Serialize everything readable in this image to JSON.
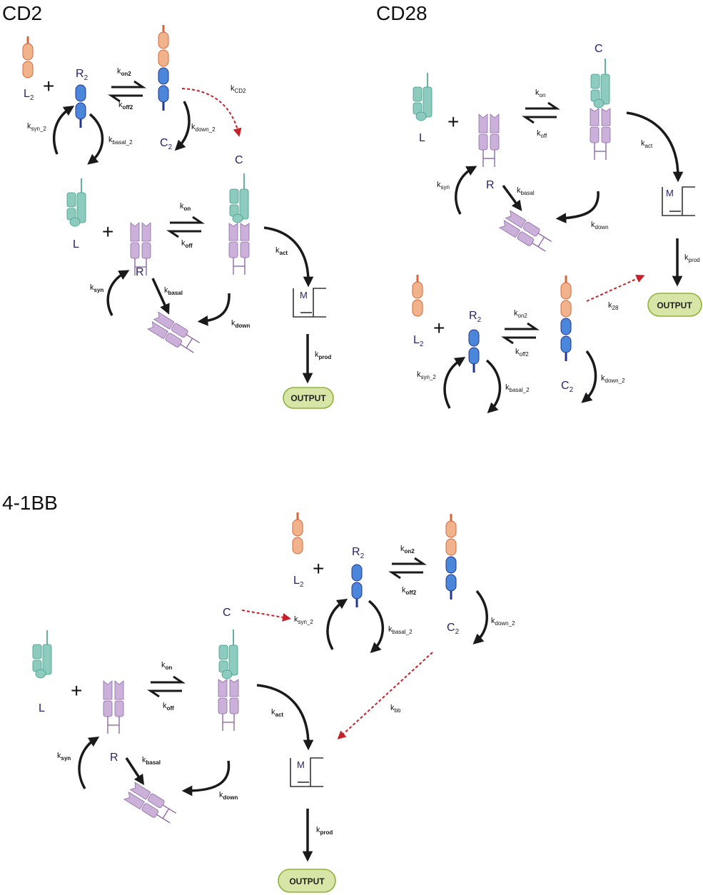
{
  "panels": [
    {
      "title": "CD2",
      "species": {
        "l2": "L",
        "r2": "R",
        "c2": "C",
        "c": "C",
        "l": "L",
        "r": "R",
        "m": "M"
      },
      "rates": {
        "kon2": [
          "k",
          "on2"
        ],
        "koff2": [
          "k",
          "off2"
        ],
        "kcd2": [
          "k",
          "CD2"
        ],
        "ksyn2": [
          "k",
          "syn_2"
        ],
        "kbasal2": [
          "k",
          "basal_2"
        ],
        "kdown2": [
          "k",
          "down_2"
        ],
        "kon": [
          "k",
          "on"
        ],
        "koff": [
          "k",
          "off"
        ],
        "kact": [
          "k",
          "act"
        ],
        "ksyn": [
          "k",
          "syn"
        ],
        "kbasal": [
          "k",
          "basal"
        ],
        "kdown": [
          "k",
          "down"
        ],
        "kprod": [
          "k",
          "prod"
        ]
      },
      "output": "OUTPUT"
    },
    {
      "title": "CD28",
      "species": {
        "c": "C",
        "l": "L",
        "r": "R",
        "m": "M",
        "l2": "L",
        "r2": "R",
        "c2": "C"
      },
      "rates": {
        "kon": [
          "k",
          "on"
        ],
        "koff": [
          "k",
          "off"
        ],
        "kact": [
          "k",
          "act"
        ],
        "ksyn": [
          "k",
          "syn"
        ],
        "kbasal": [
          "k",
          "basal"
        ],
        "kdown": [
          "k",
          "down"
        ],
        "kprod": [
          "k",
          "prod"
        ],
        "kon2": [
          "k",
          "on2"
        ],
        "koff2": [
          "k",
          "off2"
        ],
        "k28": [
          "k",
          "28"
        ],
        "ksyn2": [
          "k",
          "syn_2"
        ],
        "kbasal2": [
          "k",
          "basal_2"
        ],
        "kdown2": [
          "k",
          "down_2"
        ]
      },
      "output": "OUTPUT"
    },
    {
      "title": "4-1BB",
      "species": {
        "l2": "L",
        "r2": "R",
        "c2": "C",
        "c": "C",
        "l": "L",
        "r": "R",
        "m": "M"
      },
      "rates": {
        "kon2": [
          "k",
          "on2"
        ],
        "koff2": [
          "k",
          "off2"
        ],
        "ksyn2": [
          "k",
          "syn_2"
        ],
        "kbasal2": [
          "k",
          "basal_2"
        ],
        "kdown2": [
          "k",
          "down_2"
        ],
        "kbb": [
          "k",
          "bb"
        ],
        "kon": [
          "k",
          "on"
        ],
        "koff": [
          "k",
          "off"
        ],
        "kact": [
          "k",
          "act"
        ],
        "ksyn": [
          "k",
          "syn"
        ],
        "kbasal": [
          "k",
          "basal"
        ],
        "kdown": [
          "k",
          "down"
        ],
        "kprod": [
          "k",
          "prod"
        ]
      },
      "output": "OUTPUT"
    }
  ],
  "subscript_two": "2",
  "plus": "+",
  "colors": {
    "arrow": "#1a1a1a",
    "dashed_arrow": "#c8202a",
    "ligand2_body": "#f0b38b",
    "ligand2_edge": "#d8653a",
    "receptor2_body": "#4a86d9",
    "receptor2_edge": "#24358f",
    "teal_body": "#8ccbbd",
    "teal_edge": "#3f9c8a",
    "purple_body": "#cbb0d9",
    "purple_edge": "#8d6aa8",
    "output_fill": "#d7e6a7",
    "output_edge": "#8fb23c",
    "species_text": "#2b2266"
  }
}
